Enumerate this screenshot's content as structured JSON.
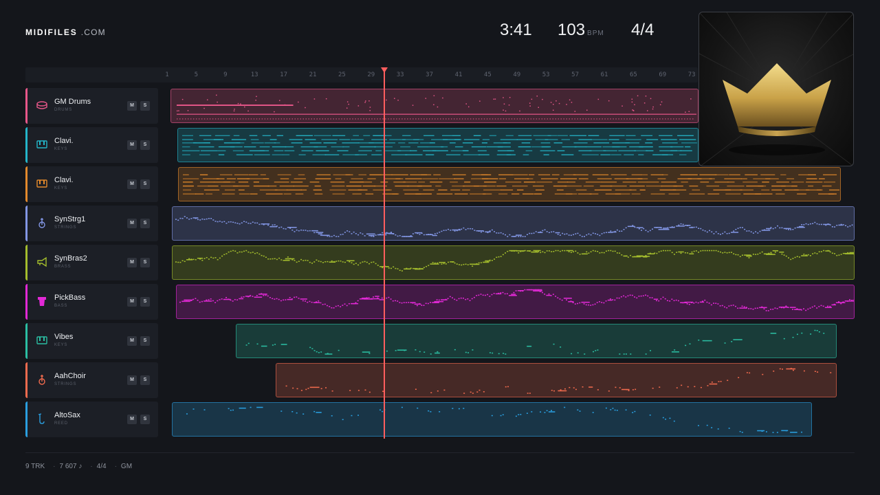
{
  "header": {
    "brand": "MIDIFILES",
    "tld": ".COM",
    "duration": "3:41",
    "tempo": "103",
    "tempo_unit": "BPM",
    "time_signature": "4/4"
  },
  "ruler": {
    "bars": [
      "1",
      "5",
      "9",
      "13",
      "17",
      "21",
      "25",
      "29",
      "33",
      "37",
      "41",
      "45",
      "49",
      "53",
      "57",
      "61",
      "65",
      "69",
      "73"
    ]
  },
  "tracks": [
    {
      "name": "GM Drums",
      "category": "DRUMS",
      "color": "#e8578a",
      "icon": "drum-icon",
      "mute": "M",
      "solo": "S"
    },
    {
      "name": "Clavi.",
      "category": "KEYS",
      "color": "#24b6c9",
      "icon": "keyboard-icon",
      "mute": "M",
      "solo": "S"
    },
    {
      "name": "Clavi.",
      "category": "KEYS",
      "color": "#e48a2c",
      "icon": "keyboard-icon",
      "mute": "M",
      "solo": "S"
    },
    {
      "name": "SynStrg1",
      "category": "STRINGS",
      "color": "#8296e4",
      "icon": "violin-icon",
      "mute": "M",
      "solo": "S"
    },
    {
      "name": "SynBras2",
      "category": "BRASS",
      "color": "#a4bd2d",
      "icon": "trumpet-icon",
      "mute": "M",
      "solo": "S"
    },
    {
      "name": "PickBass",
      "category": "BASS",
      "color": "#e229d6",
      "icon": "amp-icon",
      "mute": "M",
      "solo": "S"
    },
    {
      "name": "Vibes",
      "category": "KEYS",
      "color": "#2bbfa3",
      "icon": "keyboard-icon",
      "mute": "M",
      "solo": "S"
    },
    {
      "name": "AahChoir",
      "category": "STRINGS",
      "color": "#f26b4e",
      "icon": "violin-icon",
      "mute": "M",
      "solo": "S"
    },
    {
      "name": "AltoSax",
      "category": "REED",
      "color": "#2a9fe0",
      "icon": "saxophone-icon",
      "mute": "M",
      "solo": "S"
    }
  ],
  "footer": {
    "tracks": "9 TRK",
    "notes": "7 607 ♪",
    "time_signature": "4/4",
    "standard": "GM"
  }
}
